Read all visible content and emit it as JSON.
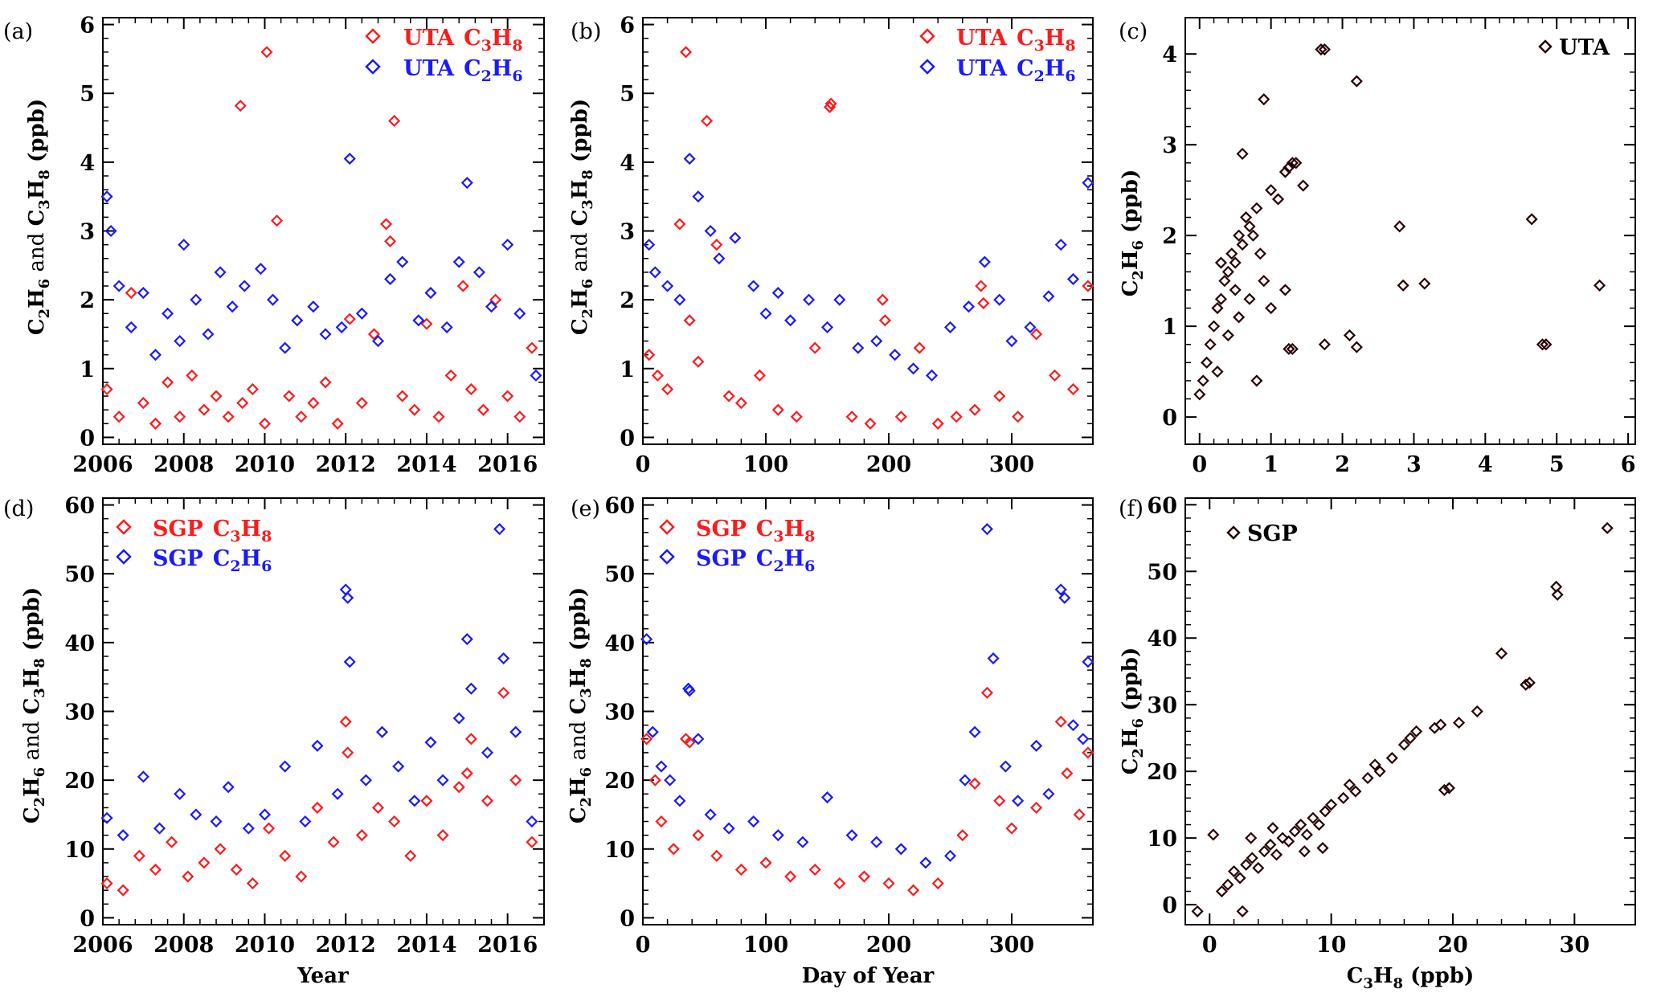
{
  "colors": {
    "c3h8": "#ff1a1a",
    "c2h6": "#1a1aff",
    "scatter": "#2a0000",
    "axis": "#000000",
    "background": "#ffffff"
  },
  "panels": [
    {
      "id": "a",
      "label": "(a)",
      "legend": [
        {
          "site": "UTA",
          "species": [
            "C",
            "3",
            "H",
            "8"
          ],
          "series": "c3h8"
        },
        {
          "site": "UTA",
          "species": [
            "C",
            "2",
            "H",
            "6"
          ],
          "series": "c2h6"
        }
      ],
      "xlabel": [],
      "ylabel": [
        "C",
        "2",
        "H",
        "6",
        " and ",
        "C",
        "3",
        "H",
        "8",
        " (ppb)"
      ]
    },
    {
      "id": "b",
      "label": "(b)",
      "legend": [
        {
          "site": "UTA",
          "species": [
            "C",
            "3",
            "H",
            "8"
          ],
          "series": "c3h8"
        },
        {
          "site": "UTA",
          "species": [
            "C",
            "2",
            "H",
            "6"
          ],
          "series": "c2h6"
        }
      ],
      "xlabel": [],
      "ylabel": [
        "C",
        "2",
        "H",
        "6",
        " and ",
        "C",
        "3",
        "H",
        "8",
        " (ppb)"
      ]
    },
    {
      "id": "c",
      "label": "(c)",
      "legend": [
        {
          "site": "UTA",
          "species": [],
          "series": "scatter"
        }
      ],
      "xlabel": [],
      "ylabel": [
        "C",
        "2",
        "H",
        "6",
        " (ppb)"
      ]
    },
    {
      "id": "d",
      "label": "(d)",
      "legend": [
        {
          "site": "SGP",
          "species": [
            "C",
            "3",
            "H",
            "8"
          ],
          "series": "c3h8"
        },
        {
          "site": "SGP",
          "species": [
            "C",
            "2",
            "H",
            "6"
          ],
          "series": "c2h6"
        }
      ],
      "xlabel": [
        "Year"
      ],
      "ylabel": [
        "C",
        "2",
        "H",
        "6",
        " and ",
        "C",
        "3",
        "H",
        "8",
        " (ppb)"
      ]
    },
    {
      "id": "e",
      "label": "(e)",
      "legend": [
        {
          "site": "SGP",
          "species": [
            "C",
            "3",
            "H",
            "8"
          ],
          "series": "c3h8"
        },
        {
          "site": "SGP",
          "species": [
            "C",
            "2",
            "H",
            "6"
          ],
          "series": "c2h6"
        }
      ],
      "xlabel": [
        "Day of Year"
      ],
      "ylabel": [
        "C",
        "2",
        "H",
        "6",
        " and ",
        "C",
        "3",
        "H",
        "8",
        " (ppb)"
      ]
    },
    {
      "id": "f",
      "label": "(f)",
      "legend": [
        {
          "site": "SGP",
          "species": [],
          "series": "scatter"
        }
      ],
      "xlabel": [
        "C",
        "3",
        "H",
        "8",
        " (ppb)"
      ],
      "ylabel": [
        "C",
        "2",
        "H",
        "6",
        " (ppb)"
      ]
    }
  ],
  "chart_data": [
    {
      "panel": "a",
      "type": "scatter",
      "xlim": [
        2006,
        2016.9
      ],
      "ylim": [
        -0.1,
        6.1
      ],
      "xticks": [
        2006,
        2008,
        2010,
        2012,
        2014,
        2016
      ],
      "yticks": [
        0,
        1,
        2,
        3,
        4,
        5,
        6
      ],
      "series": [
        {
          "name": "UTA C3H8",
          "color_key": "c3h8",
          "x": [
            2006.1,
            2006.4,
            2006.7,
            2007.0,
            2007.3,
            2007.6,
            2007.9,
            2008.2,
            2008.5,
            2008.8,
            2009.1,
            2009.4,
            2009.45,
            2009.7,
            2010.0,
            2010.05,
            2010.3,
            2010.6,
            2010.9,
            2011.2,
            2011.5,
            2011.8,
            2012.1,
            2012.4,
            2012.7,
            2013.0,
            2013.1,
            2013.2,
            2013.4,
            2013.7,
            2014.0,
            2014.3,
            2014.6,
            2014.9,
            2015.1,
            2015.4,
            2015.7,
            2016.0,
            2016.3,
            2016.6
          ],
          "y": [
            0.7,
            0.3,
            2.1,
            0.5,
            0.2,
            0.8,
            0.3,
            0.9,
            0.4,
            0.6,
            0.3,
            4.82,
            0.5,
            0.7,
            0.2,
            5.6,
            3.15,
            0.6,
            0.3,
            0.5,
            0.8,
            0.2,
            1.72,
            0.5,
            1.5,
            3.1,
            2.85,
            4.6,
            0.6,
            0.4,
            1.65,
            0.3,
            0.9,
            2.2,
            0.7,
            0.4,
            2.0,
            0.6,
            0.3,
            1.3
          ]
        },
        {
          "name": "UTA C2H6",
          "color_key": "c2h6",
          "x": [
            2006.1,
            2006.2,
            2006.4,
            2006.7,
            2007.0,
            2007.3,
            2007.6,
            2007.9,
            2008.0,
            2008.3,
            2008.6,
            2008.9,
            2009.2,
            2009.5,
            2009.9,
            2010.2,
            2010.5,
            2010.8,
            2011.2,
            2011.5,
            2011.9,
            2012.1,
            2012.4,
            2012.8,
            2013.1,
            2013.4,
            2013.8,
            2014.1,
            2014.5,
            2014.8,
            2015.0,
            2015.3,
            2015.6,
            2016.0,
            2016.3,
            2016.7
          ],
          "y": [
            3.5,
            3.0,
            2.2,
            1.6,
            2.1,
            1.2,
            1.8,
            1.4,
            2.8,
            2.0,
            1.5,
            2.4,
            1.9,
            2.2,
            2.45,
            2.0,
            1.3,
            1.7,
            1.9,
            1.5,
            1.6,
            4.05,
            1.8,
            1.4,
            2.3,
            2.55,
            1.7,
            2.1,
            1.6,
            2.55,
            3.7,
            2.4,
            1.9,
            2.8,
            1.8,
            0.9
          ]
        }
      ]
    },
    {
      "panel": "b",
      "type": "scatter",
      "xlim": [
        0,
        366
      ],
      "ylim": [
        -0.1,
        6.1
      ],
      "xticks": [
        0,
        100,
        200,
        300
      ],
      "yticks": [
        0,
        1,
        2,
        3,
        4,
        5,
        6
      ],
      "series": [
        {
          "name": "UTA C3H8",
          "color_key": "c3h8",
          "x": [
            5,
            12,
            20,
            30,
            35,
            38,
            45,
            52,
            60,
            70,
            80,
            95,
            110,
            125,
            140,
            152,
            153,
            170,
            185,
            195,
            197,
            210,
            225,
            240,
            255,
            270,
            275,
            277,
            290,
            305,
            320,
            335,
            350,
            362
          ],
          "y": [
            1.2,
            0.9,
            0.7,
            3.1,
            5.6,
            1.7,
            1.1,
            4.6,
            2.8,
            0.6,
            0.5,
            0.9,
            0.4,
            0.3,
            1.3,
            4.8,
            4.85,
            0.3,
            0.2,
            2.0,
            1.7,
            0.3,
            1.3,
            0.2,
            0.3,
            0.4,
            2.2,
            1.95,
            0.6,
            0.3,
            1.5,
            0.9,
            0.7,
            2.2
          ]
        },
        {
          "name": "UTA C2H6",
          "color_key": "c2h6",
          "x": [
            5,
            10,
            20,
            30,
            38,
            45,
            55,
            62,
            75,
            90,
            100,
            110,
            120,
            135,
            150,
            160,
            175,
            190,
            205,
            220,
            235,
            250,
            265,
            278,
            290,
            300,
            315,
            330,
            340,
            350,
            362
          ],
          "y": [
            2.8,
            2.4,
            2.2,
            2.0,
            4.05,
            3.5,
            3.0,
            2.6,
            2.9,
            2.2,
            1.8,
            2.1,
            1.7,
            2.0,
            1.6,
            2.0,
            1.3,
            1.4,
            1.2,
            1.0,
            0.9,
            1.6,
            1.9,
            2.55,
            2.0,
            1.4,
            1.6,
            2.05,
            2.8,
            2.3,
            3.7
          ]
        }
      ]
    },
    {
      "panel": "c",
      "type": "scatter",
      "xlim": [
        -0.2,
        6.1
      ],
      "ylim": [
        -0.3,
        4.4
      ],
      "xticks": [
        0,
        1,
        2,
        3,
        4,
        5,
        6
      ],
      "yticks": [
        0,
        1,
        2,
        3,
        4
      ],
      "series": [
        {
          "name": "UTA",
          "color_key": "scatter",
          "x": [
            0.0,
            0.05,
            0.1,
            0.15,
            0.2,
            0.25,
            0.3,
            0.35,
            0.4,
            0.45,
            0.5,
            0.55,
            0.6,
            0.65,
            0.7,
            0.75,
            0.8,
            0.85,
            0.9,
            1.0,
            1.1,
            1.2,
            1.25,
            1.3,
            1.35,
            1.45,
            1.7,
            1.75,
            2.2,
            1.2,
            0.9,
            0.6,
            2.8,
            2.85,
            3.15,
            4.65,
            4.8,
            4.85,
            5.6,
            1.25,
            1.3,
            1.75,
            2.1,
            2.2,
            0.25,
            0.4,
            0.55,
            0.7,
            0.3,
            0.5,
            1.0,
            0.8
          ],
          "y": [
            0.25,
            0.4,
            0.6,
            0.8,
            1.0,
            1.2,
            1.3,
            1.5,
            1.6,
            1.8,
            1.7,
            2.0,
            1.9,
            2.2,
            2.1,
            2.0,
            2.3,
            1.8,
            1.5,
            2.5,
            2.4,
            2.7,
            2.75,
            2.8,
            2.8,
            2.55,
            4.05,
            4.05,
            3.7,
            1.4,
            3.5,
            2.9,
            2.1,
            1.45,
            1.47,
            2.18,
            0.8,
            0.8,
            1.45,
            0.75,
            0.75,
            0.8,
            0.9,
            0.77,
            0.5,
            0.9,
            1.1,
            1.3,
            1.7,
            1.4,
            1.2,
            0.4
          ]
        }
      ]
    },
    {
      "panel": "d",
      "type": "scatter",
      "xlim": [
        2006,
        2016.9
      ],
      "ylim": [
        -1,
        61
      ],
      "xticks": [
        2006,
        2008,
        2010,
        2012,
        2014,
        2016
      ],
      "yticks": [
        0,
        10,
        20,
        30,
        40,
        50,
        60
      ],
      "series": [
        {
          "name": "SGP C3H8",
          "color_key": "c3h8",
          "x": [
            2006.1,
            2006.5,
            2006.9,
            2007.3,
            2007.7,
            2008.1,
            2008.5,
            2008.9,
            2009.3,
            2009.7,
            2010.1,
            2010.5,
            2010.9,
            2011.3,
            2011.7,
            2012.0,
            2012.05,
            2012.4,
            2012.8,
            2013.2,
            2013.6,
            2014.0,
            2014.4,
            2014.8,
            2015.0,
            2015.1,
            2015.5,
            2015.9,
            2016.2,
            2016.6
          ],
          "y": [
            5,
            4,
            9,
            7,
            11,
            6,
            8,
            10,
            7,
            5,
            13,
            9,
            6,
            16,
            11,
            28.5,
            24,
            12,
            16,
            14,
            9,
            17,
            12,
            19,
            21,
            26,
            17,
            32.7,
            20,
            11
          ]
        },
        {
          "name": "SGP C2H6",
          "color_key": "c2h6",
          "x": [
            2006.1,
            2006.5,
            2007.0,
            2007.4,
            2007.9,
            2008.3,
            2008.8,
            2009.1,
            2009.6,
            2010.0,
            2010.5,
            2011.0,
            2011.3,
            2011.8,
            2012.0,
            2012.05,
            2012.1,
            2012.5,
            2012.9,
            2013.3,
            2013.7,
            2014.1,
            2014.4,
            2014.8,
            2015.0,
            2015.1,
            2015.5,
            2015.8,
            2015.9,
            2016.2,
            2016.6
          ],
          "y": [
            14.5,
            12,
            20.5,
            13,
            18,
            15,
            14,
            19,
            13,
            15,
            22,
            14,
            25,
            18,
            47.7,
            46.5,
            37.2,
            20,
            27,
            22,
            17,
            25.5,
            20,
            29,
            40.5,
            33.3,
            24,
            56.5,
            37.7,
            27,
            14
          ]
        }
      ]
    },
    {
      "panel": "e",
      "type": "scatter",
      "xlim": [
        0,
        366
      ],
      "ylim": [
        -1,
        61
      ],
      "xticks": [
        0,
        100,
        200,
        300
      ],
      "yticks": [
        0,
        10,
        20,
        30,
        40,
        50,
        60
      ],
      "series": [
        {
          "name": "SGP C3H8",
          "color_key": "c3h8",
          "x": [
            3,
            10,
            15,
            25,
            35,
            38,
            45,
            60,
            80,
            100,
            120,
            140,
            160,
            180,
            200,
            220,
            240,
            260,
            270,
            280,
            290,
            300,
            320,
            340,
            345,
            355,
            362
          ],
          "y": [
            26,
            20,
            14,
            10,
            26,
            25.5,
            12,
            9,
            7,
            8,
            6,
            7,
            5,
            6,
            5,
            4,
            5,
            12,
            19.5,
            32.7,
            17,
            13,
            16,
            28.5,
            21,
            15,
            24
          ]
        },
        {
          "name": "SGP C2H6",
          "color_key": "c2h6",
          "x": [
            3,
            8,
            15,
            22,
            30,
            37,
            38,
            45,
            55,
            70,
            90,
            110,
            130,
            150,
            170,
            190,
            210,
            230,
            250,
            262,
            270,
            280,
            285,
            295,
            305,
            320,
            330,
            340,
            343,
            350,
            358,
            362
          ],
          "y": [
            40.5,
            27,
            22,
            20,
            17,
            33.3,
            33,
            26,
            15,
            13,
            14,
            12,
            11,
            17.5,
            12,
            11,
            10,
            8,
            9,
            20,
            27,
            56.5,
            37.7,
            22,
            17,
            25,
            18,
            47.7,
            46.5,
            28,
            26,
            37.2
          ]
        }
      ]
    },
    {
      "panel": "f",
      "type": "scatter",
      "xlim": [
        -2,
        35
      ],
      "ylim": [
        -3,
        61
      ],
      "xticks": [
        0,
        10,
        20,
        30
      ],
      "yticks": [
        0,
        10,
        20,
        30,
        40,
        50,
        60
      ],
      "series": [
        {
          "name": "SGP",
          "color_key": "scatter",
          "x": [
            -1,
            0.3,
            1,
            1.5,
            2,
            2.5,
            3,
            3.5,
            4,
            4.5,
            5,
            5.5,
            6,
            6.5,
            7,
            7.5,
            8,
            8.5,
            9,
            9.5,
            10,
            11,
            12,
            13,
            14,
            15,
            16,
            16.5,
            17,
            18.5,
            19,
            19.3,
            19.7,
            20.5,
            22,
            24,
            26,
            26.3,
            28.5,
            28.6,
            32.7,
            2.7,
            7.8,
            9.3,
            3.4,
            5.2,
            11.5,
            13.6
          ],
          "y": [
            -1,
            10.5,
            2,
            3,
            5,
            4,
            6,
            7,
            5.5,
            8,
            9,
            7.5,
            10,
            9.5,
            11,
            12,
            10.5,
            13,
            12,
            14,
            15,
            16,
            17,
            19,
            20,
            22,
            24,
            25,
            26,
            26.5,
            27,
            17.2,
            17.5,
            27.3,
            29,
            37.7,
            33,
            33.3,
            47.7,
            46.5,
            56.5,
            -1,
            8,
            8.5,
            10,
            11.5,
            18,
            21
          ]
        }
      ]
    }
  ]
}
